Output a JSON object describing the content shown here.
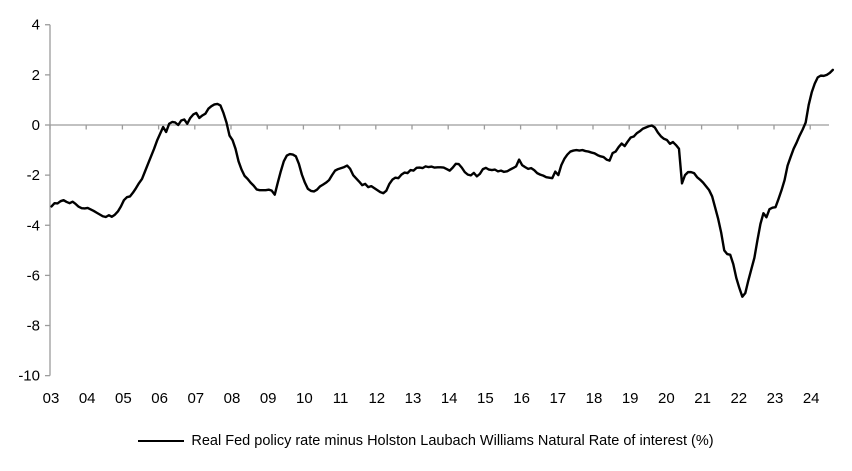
{
  "figure": {
    "legend_label": "Real Fed policy rate minus Holston Laubach Williams Natural Rate of interest (%)"
  },
  "chart_data": {
    "type": "line",
    "title": "",
    "xlabel": "",
    "ylabel": "",
    "ylim": [
      -10,
      4
    ],
    "y_ticks": [
      4,
      2,
      0,
      -2,
      -4,
      -6,
      -8,
      -10
    ],
    "x_tick_labels": [
      "03",
      "04",
      "05",
      "06",
      "07",
      "08",
      "09",
      "10",
      "11",
      "12",
      "13",
      "14",
      "15",
      "16",
      "17",
      "18",
      "19",
      "20",
      "21",
      "22",
      "23",
      "24"
    ],
    "grid": "zero-line-only",
    "legend_position": "bottom-center",
    "line_color": "#000000",
    "axis_color": "#9c9c9c",
    "text_color": "#000000",
    "series": [
      {
        "name": "Real Fed policy rate minus Holston Laubach Williams Natural Rate of interest (%)",
        "frequency": "monthly",
        "start_year": 2003,
        "start_month": 1,
        "values": [
          -3.25,
          -3.12,
          -3.13,
          -3.04,
          -3.0,
          -3.07,
          -3.12,
          -3.06,
          -3.15,
          -3.26,
          -3.32,
          -3.33,
          -3.31,
          -3.37,
          -3.43,
          -3.5,
          -3.57,
          -3.64,
          -3.67,
          -3.6,
          -3.66,
          -3.58,
          -3.45,
          -3.25,
          -3.0,
          -2.88,
          -2.85,
          -2.7,
          -2.52,
          -2.32,
          -2.15,
          -1.85,
          -1.55,
          -1.25,
          -0.95,
          -0.62,
          -0.35,
          -0.08,
          -0.28,
          0.05,
          0.12,
          0.1,
          0.0,
          0.18,
          0.22,
          0.05,
          0.28,
          0.42,
          0.48,
          0.28,
          0.38,
          0.45,
          0.65,
          0.75,
          0.82,
          0.84,
          0.78,
          0.48,
          0.1,
          -0.42,
          -0.6,
          -0.95,
          -1.45,
          -1.78,
          -2.03,
          -2.15,
          -2.3,
          -2.42,
          -2.57,
          -2.6,
          -2.6,
          -2.6,
          -2.58,
          -2.62,
          -2.78,
          -2.3,
          -1.85,
          -1.45,
          -1.22,
          -1.16,
          -1.18,
          -1.25,
          -1.55,
          -1.98,
          -2.3,
          -2.55,
          -2.63,
          -2.65,
          -2.58,
          -2.45,
          -2.38,
          -2.3,
          -2.2,
          -2.0,
          -1.82,
          -1.76,
          -1.72,
          -1.68,
          -1.62,
          -1.75,
          -2.0,
          -2.13,
          -2.26,
          -2.4,
          -2.35,
          -2.48,
          -2.44,
          -2.52,
          -2.6,
          -2.68,
          -2.72,
          -2.62,
          -2.35,
          -2.18,
          -2.1,
          -2.12,
          -1.98,
          -1.9,
          -1.92,
          -1.8,
          -1.82,
          -1.71,
          -1.7,
          -1.72,
          -1.65,
          -1.68,
          -1.66,
          -1.7,
          -1.69,
          -1.69,
          -1.7,
          -1.76,
          -1.82,
          -1.7,
          -1.55,
          -1.56,
          -1.7,
          -1.88,
          -1.98,
          -2.01,
          -1.91,
          -2.05,
          -1.95,
          -1.76,
          -1.71,
          -1.78,
          -1.8,
          -1.78,
          -1.85,
          -1.82,
          -1.87,
          -1.85,
          -1.78,
          -1.72,
          -1.65,
          -1.38,
          -1.6,
          -1.68,
          -1.75,
          -1.72,
          -1.8,
          -1.92,
          -1.98,
          -2.02,
          -2.08,
          -2.1,
          -2.12,
          -1.86,
          -2.0,
          -1.6,
          -1.35,
          -1.18,
          -1.06,
          -1.02,
          -1.0,
          -1.02,
          -1.0,
          -1.04,
          -1.06,
          -1.1,
          -1.13,
          -1.2,
          -1.25,
          -1.28,
          -1.38,
          -1.42,
          -1.12,
          -1.06,
          -0.88,
          -0.74,
          -0.84,
          -0.66,
          -0.5,
          -0.46,
          -0.33,
          -0.25,
          -0.15,
          -0.1,
          -0.05,
          -0.02,
          -0.1,
          -0.3,
          -0.45,
          -0.55,
          -0.6,
          -0.75,
          -0.68,
          -0.8,
          -0.95,
          -2.33,
          -2.0,
          -1.88,
          -1.88,
          -1.92,
          -2.08,
          -2.18,
          -2.3,
          -2.45,
          -2.6,
          -2.85,
          -3.3,
          -3.75,
          -4.3,
          -5.0,
          -5.15,
          -5.18,
          -5.55,
          -6.1,
          -6.5,
          -6.85,
          -6.7,
          -6.2,
          -5.75,
          -5.3,
          -4.6,
          -3.95,
          -3.52,
          -3.68,
          -3.36,
          -3.3,
          -3.28,
          -2.95,
          -2.6,
          -2.2,
          -1.62,
          -1.28,
          -0.95,
          -0.7,
          -0.42,
          -0.18,
          0.1,
          0.8,
          1.3,
          1.65,
          1.9,
          1.97,
          1.96,
          2.0,
          2.08,
          2.2
        ]
      }
    ]
  }
}
